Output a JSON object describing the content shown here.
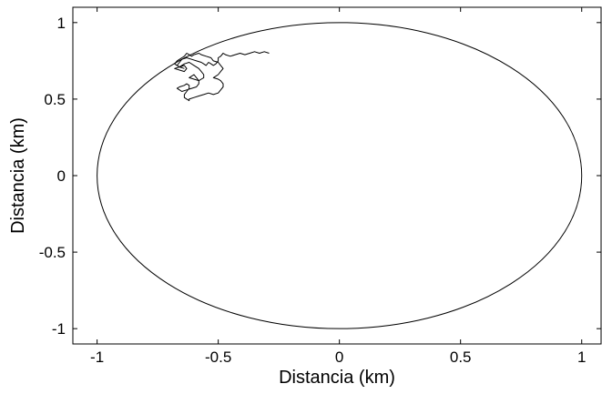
{
  "chart_data": {
    "type": "line",
    "title": "",
    "xlabel": "Distancia (km)",
    "ylabel": "Distancia (km)",
    "xlim": [
      -1.1,
      1.08
    ],
    "ylim": [
      -1.1,
      1.1
    ],
    "grid": false,
    "legend": "none",
    "x_ticks": [
      -1,
      -0.5,
      0,
      0.5,
      1
    ],
    "x_tick_labels": [
      "-1",
      "-0.5",
      "0",
      "0.5",
      "1"
    ],
    "y_ticks": [
      1,
      0.5,
      0,
      -0.5,
      -1
    ],
    "y_tick_labels": [
      "1",
      "0.5",
      "0",
      "-0.5",
      "-1"
    ],
    "colors": {
      "line": "#000000",
      "axes": "#000000",
      "background": "#ffffff"
    },
    "series": [
      {
        "kind": "circle",
        "center": [
          0,
          0
        ],
        "radius": 1
      },
      {
        "kind": "path",
        "x": [
          -0.29,
          -0.31,
          -0.33,
          -0.35,
          -0.37,
          -0.39,
          -0.41,
          -0.43,
          -0.45,
          -0.47,
          -0.48,
          -0.49,
          -0.5,
          -0.5,
          -0.51,
          -0.52,
          -0.53,
          -0.54,
          -0.55,
          -0.56,
          -0.57,
          -0.59,
          -0.61,
          -0.63,
          -0.65,
          -0.66,
          -0.67,
          -0.66,
          -0.64,
          -0.63,
          -0.64,
          -0.66,
          -0.68,
          -0.66,
          -0.64,
          -0.62,
          -0.6,
          -0.58,
          -0.57,
          -0.56,
          -0.56,
          -0.57,
          -0.58,
          -0.6,
          -0.62,
          -0.61,
          -0.6,
          -0.59,
          -0.58,
          -0.58,
          -0.59,
          -0.61,
          -0.63,
          -0.65,
          -0.66,
          -0.67,
          -0.66,
          -0.64,
          -0.63,
          -0.62,
          -0.62,
          -0.63,
          -0.64,
          -0.64,
          -0.63,
          -0.62,
          -0.62,
          -0.6,
          -0.58,
          -0.56,
          -0.54,
          -0.52,
          -0.5,
          -0.49,
          -0.48,
          -0.48,
          -0.49,
          -0.5,
          -0.52,
          -0.5,
          -0.49,
          -0.48,
          -0.49,
          -0.5,
          -0.52,
          -0.53,
          -0.55,
          -0.57,
          -0.58,
          -0.6,
          -0.61,
          -0.62,
          -0.63,
          -0.64,
          -0.65,
          -0.66,
          -0.67,
          -0.68,
          -0.67,
          -0.66,
          -0.64
        ],
        "y": [
          0.8,
          0.81,
          0.8,
          0.81,
          0.8,
          0.79,
          0.8,
          0.79,
          0.78,
          0.79,
          0.8,
          0.78,
          0.77,
          0.75,
          0.73,
          0.72,
          0.73,
          0.74,
          0.72,
          0.73,
          0.74,
          0.75,
          0.76,
          0.77,
          0.76,
          0.74,
          0.72,
          0.71,
          0.72,
          0.7,
          0.68,
          0.69,
          0.7,
          0.71,
          0.73,
          0.74,
          0.72,
          0.7,
          0.68,
          0.66,
          0.64,
          0.63,
          0.62,
          0.63,
          0.64,
          0.65,
          0.66,
          0.64,
          0.62,
          0.6,
          0.58,
          0.57,
          0.56,
          0.55,
          0.56,
          0.57,
          0.58,
          0.59,
          0.6,
          0.59,
          0.57,
          0.55,
          0.53,
          0.51,
          0.5,
          0.49,
          0.5,
          0.51,
          0.52,
          0.53,
          0.54,
          0.53,
          0.54,
          0.56,
          0.58,
          0.6,
          0.62,
          0.63,
          0.64,
          0.66,
          0.68,
          0.7,
          0.72,
          0.74,
          0.75,
          0.77,
          0.78,
          0.79,
          0.8,
          0.79,
          0.78,
          0.79,
          0.8,
          0.78,
          0.77,
          0.76,
          0.75,
          0.73,
          0.72,
          0.71,
          0.7
        ]
      }
    ]
  }
}
